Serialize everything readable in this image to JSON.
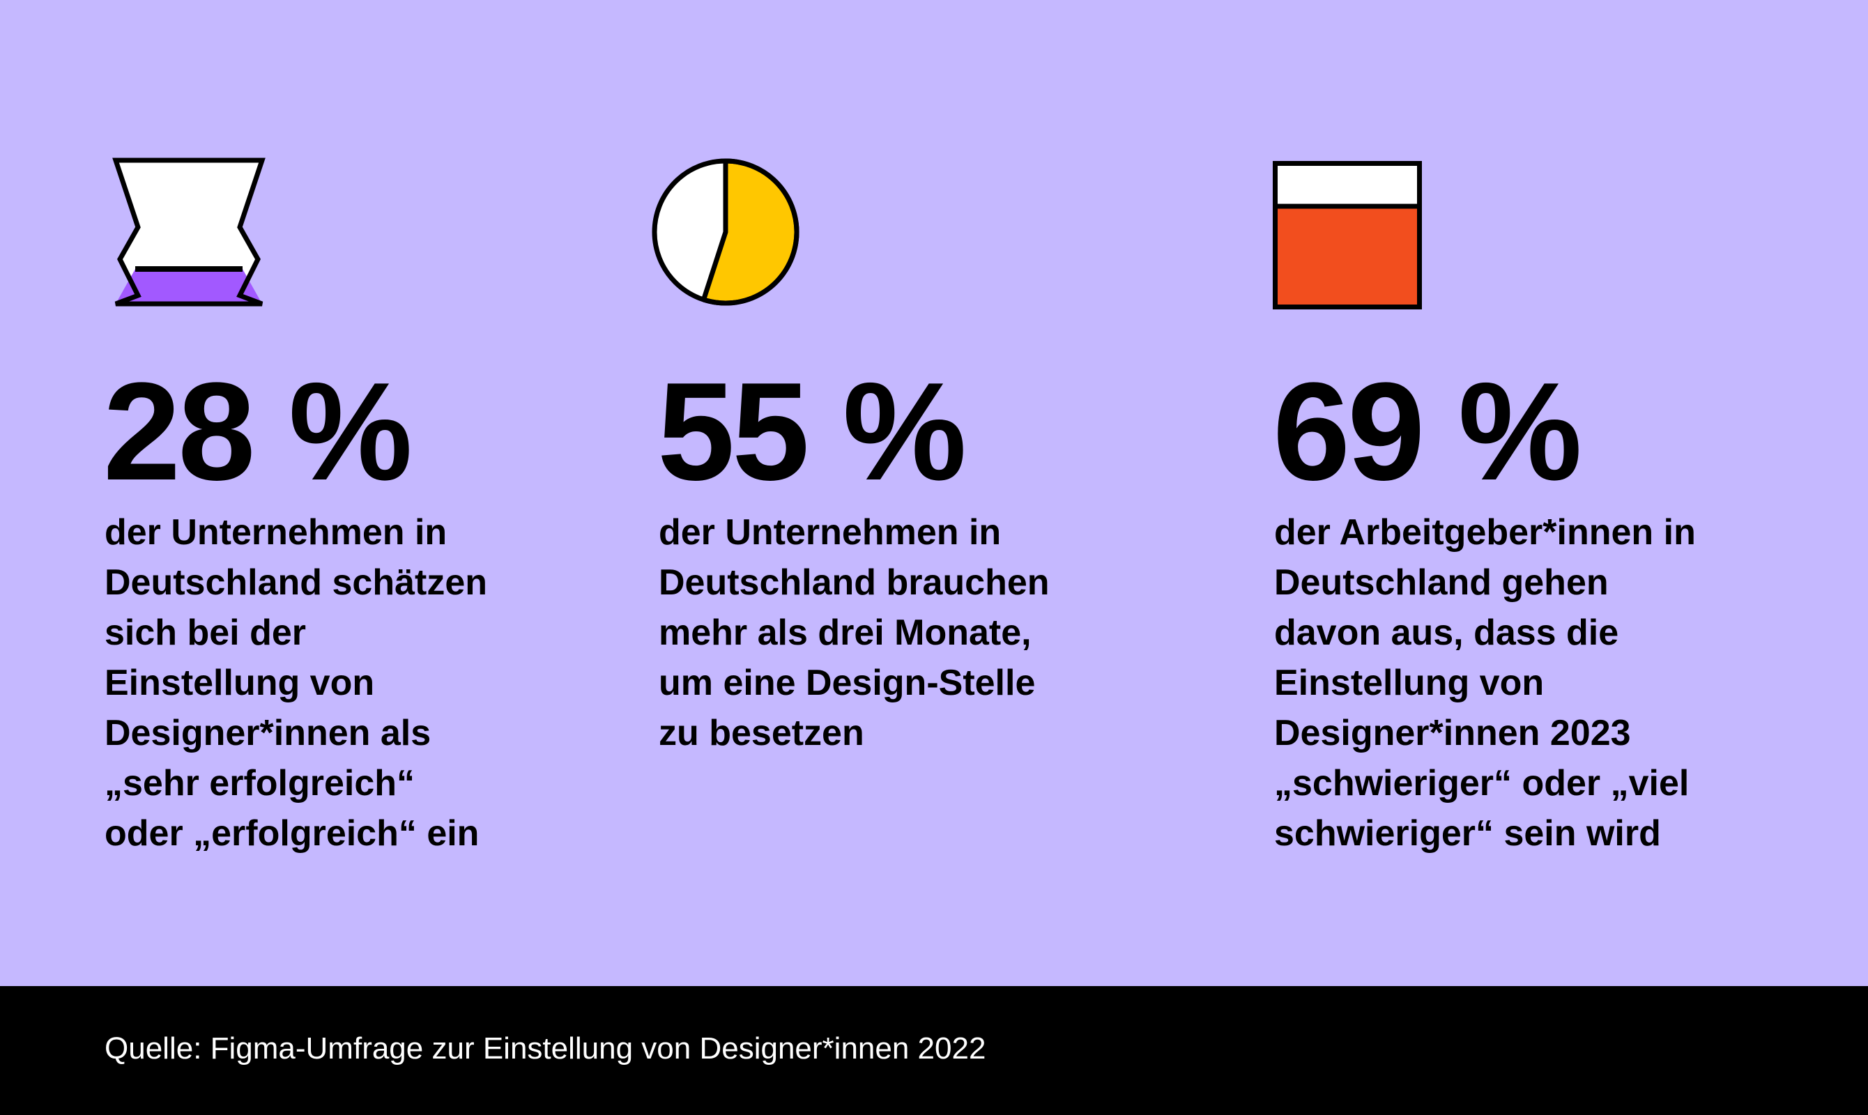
{
  "colors": {
    "background": "#c5b8ff",
    "purple": "#a259ff",
    "yellow": "#ffc700",
    "orange": "#f24e1e",
    "footer": "#000000"
  },
  "stats": [
    {
      "icon": "hourglass-icon",
      "value": "28 %",
      "fill_fraction": 0.28,
      "text": "der Unternehmen in\nDeutschland schätzen\nsich bei der\nEinstellung von\nDesigner*innen als\n„sehr erfolgreich“\noder „erfolgreich“ ein"
    },
    {
      "icon": "pie-icon",
      "value": "55 %",
      "fill_fraction": 0.55,
      "text": "der Unternehmen in\nDeutschland brauchen\nmehr als drei Monate,\num eine Design-Stelle\nzu besetzen"
    },
    {
      "icon": "box-fill-icon",
      "value": "69 %",
      "fill_fraction": 0.69,
      "text": "der Arbeitgeber*innen in\nDeutschland gehen\ndavon aus, dass die\nEinstellung von\nDesigner*innen 2023\n„schwieriger“ oder „viel\nschwieriger“ sein wird"
    }
  ],
  "footer": {
    "source": "Quelle: Figma-Umfrage zur Einstellung von Designer*innen 2022"
  }
}
